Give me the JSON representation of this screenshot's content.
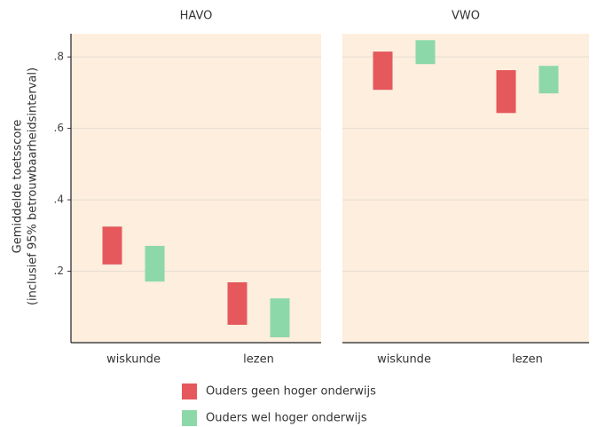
{
  "chart_data": {
    "type": "range_bar",
    "ylabel": [
      "Gemiddelde toetsscore",
      "(inclusief 95% betrouwbaarheidsinterval)"
    ],
    "categories": [
      "wiskunde",
      "lezen"
    ],
    "series": [
      {
        "name": "Ouders geen hoger onderwijs",
        "color": "#e5585c"
      },
      {
        "name": "Ouders wel hoger onderwijs",
        "color": "#8dd8a8"
      }
    ],
    "panels": [
      {
        "title": "HAVO",
        "low": [
          [
            0.219,
            0.05
          ],
          [
            0.171,
            0.015
          ]
        ],
        "high": [
          [
            0.325,
            0.169
          ],
          [
            0.271,
            0.124
          ]
        ]
      },
      {
        "title": "VWO",
        "low": [
          [
            0.708,
            0.643
          ],
          [
            0.78,
            0.698
          ]
        ],
        "high": [
          [
            0.815,
            0.763
          ],
          [
            0.847,
            0.775
          ]
        ]
      }
    ],
    "ylim": [
      0,
      0.865
    ],
    "yticks": [
      {
        "value": 0.2,
        "label": ".2"
      },
      {
        "value": 0.4,
        "label": ".4"
      },
      {
        "value": 0.6,
        "label": ".6"
      },
      {
        "value": 0.8,
        "label": ".8"
      }
    ],
    "grid": true,
    "panel_color": "#fdeedd"
  }
}
